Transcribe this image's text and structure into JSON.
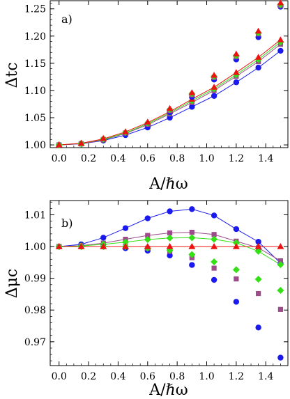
{
  "chart_data": [
    {
      "type": "scatter",
      "panel_label": "a)",
      "xlabel": "A/ℏω",
      "ylabel": "Δtc",
      "xlim": [
        -0.06,
        1.55
      ],
      "ylim": [
        0.995,
        1.265
      ],
      "xticks": [
        "0.0",
        "0.2",
        "0.4",
        "0.6",
        "0.8",
        "1.0",
        "1.2",
        "1.4"
      ],
      "yticks": [
        "1.00",
        "1.05",
        "1.10",
        "1.15",
        "1.20",
        "1.25"
      ],
      "x": [
        0,
        0.15,
        0.3,
        0.45,
        0.6,
        0.75,
        0.9,
        1.05,
        1.2,
        1.35,
        1.5
      ],
      "series": [
        {
          "marker": "circle",
          "color": "#1a1aee",
          "values": [
            1.0,
            1.002,
            1.01,
            1.021,
            1.036,
            1.06,
            1.088,
            1.12,
            1.157,
            1.198,
            1.254
          ],
          "line_values": [
            1.0,
            1.002,
            1.008,
            1.018,
            1.032,
            1.05,
            1.07,
            1.09,
            1.115,
            1.142,
            1.173
          ]
        },
        {
          "marker": "square",
          "color": "#9c4a8a",
          "values": [
            1.0,
            1.002,
            1.01,
            1.022,
            1.038,
            1.063,
            1.092,
            1.124,
            1.162,
            1.204,
            1.256
          ],
          "line_values": [
            1.0,
            1.002,
            1.009,
            1.021,
            1.037,
            1.057,
            1.078,
            1.1,
            1.126,
            1.153,
            1.185
          ]
        },
        {
          "marker": "diamond",
          "color": "#33e014",
          "values": [
            1.0,
            1.002,
            1.011,
            1.023,
            1.04,
            1.065,
            1.094,
            1.126,
            1.164,
            1.206,
            1.258
          ],
          "line_values": [
            1.0,
            1.003,
            1.01,
            1.022,
            1.039,
            1.059,
            1.081,
            1.103,
            1.129,
            1.157,
            1.189
          ]
        },
        {
          "marker": "triangle",
          "color": "#ee1111",
          "values": [
            1.0,
            1.003,
            1.012,
            1.024,
            1.042,
            1.067,
            1.096,
            1.128,
            1.167,
            1.209,
            1.261
          ],
          "line_values": [
            1.0,
            1.003,
            1.011,
            1.024,
            1.041,
            1.061,
            1.084,
            1.106,
            1.133,
            1.161,
            1.193
          ]
        }
      ]
    },
    {
      "type": "scatter",
      "panel_label": "b)",
      "xlabel": "A/ℏω",
      "ylabel": "Δμc",
      "xlim": [
        -0.06,
        1.55
      ],
      "ylim": [
        0.9625,
        1.0145
      ],
      "xticks": [
        "0.0",
        "0.2",
        "0.4",
        "0.6",
        "0.8",
        "1.0",
        "1.2",
        "1.4"
      ],
      "yticks": [
        "0.97",
        "0.98",
        "0.99",
        "1.00",
        "1.01"
      ],
      "x": [
        0,
        0.15,
        0.3,
        0.45,
        0.6,
        0.75,
        0.9,
        1.05,
        1.2,
        1.35,
        1.5
      ],
      "series": [
        {
          "marker": "circle",
          "color": "#1a1aee",
          "values": [
            1.0,
            1.0,
            1.0,
            0.9995,
            0.9987,
            0.9972,
            0.9942,
            0.9895,
            0.9826,
            0.9745,
            0.965
          ],
          "line_values": [
            1.0,
            1.0007,
            1.0028,
            1.0058,
            1.0089,
            1.0111,
            1.0118,
            1.0098,
            1.0055,
            1.0015,
            0.9948
          ]
        },
        {
          "marker": "square",
          "color": "#9c4a8a",
          "values": [
            1.0,
            1.0,
            1.0,
            1.0,
            0.9995,
            0.9985,
            0.9965,
            0.9932,
            0.9898,
            0.9852,
            0.9802
          ],
          "line_values": [
            1.0,
            1.0003,
            1.0011,
            1.0023,
            1.0035,
            1.0043,
            1.0045,
            1.0038,
            1.0017,
            0.9996,
            0.9955
          ]
        },
        {
          "marker": "diamond",
          "color": "#33e014",
          "values": [
            1.0,
            1.0,
            1.0,
            1.0,
            0.9995,
            0.9988,
            0.9975,
            0.9952,
            0.9927,
            0.9897,
            0.9862
          ],
          "line_values": [
            1.0,
            1.0002,
            1.0007,
            1.0014,
            1.0022,
            1.0027,
            1.0028,
            1.0023,
            1.0012,
            0.9985,
            0.9943
          ]
        },
        {
          "marker": "triangle",
          "color": "#ee1111",
          "values": [
            1.0,
            1.0,
            1.0,
            1.0,
            1.0,
            1.0,
            1.0,
            1.0,
            1.0,
            1.0,
            1.0
          ],
          "line_values": [
            1.0,
            1.0,
            1.0,
            1.0,
            1.0,
            1.0,
            1.0,
            1.0,
            1.0,
            1.0,
            1.0
          ]
        }
      ]
    }
  ]
}
